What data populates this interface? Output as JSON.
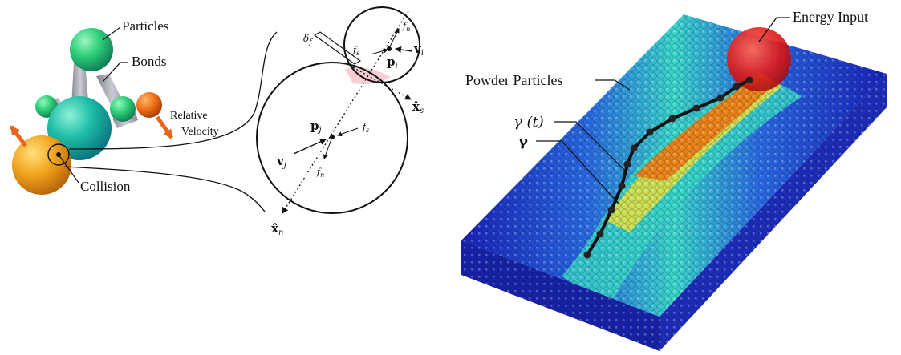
{
  "colors": {
    "particle_green": "#2fd27a",
    "particle_teal": "#1fbfa8",
    "particle_orange": "#f0a31c",
    "relative_velocity_ball": "#ee6a14",
    "arrow_orange": "#e8651a",
    "bond_gray": "#9a9aa6",
    "energy_input": "#e01818",
    "powder_low": "#1d2fd0",
    "powder_mid": "#3ad7c8",
    "powder_high": "#f07a10",
    "contact_overlap": "#f6c9cf",
    "path_black": "#111111"
  },
  "left_panel": {
    "label_particles": "Particles",
    "label_bonds": "Bonds",
    "label_relative_velocity_1": "Relative",
    "label_relative_velocity_2": "Velocity",
    "label_collision": "Collision"
  },
  "middle_panel": {
    "label_delta": "δ",
    "label_delta_sub": "f",
    "label_fn_top": "f",
    "label_fn_top_sub": "n",
    "label_fs_top": "f",
    "label_fs_top_sub": "s",
    "label_vi": "v",
    "label_vi_sub": "i",
    "label_pi": "p",
    "label_pi_sub": "i",
    "label_xs": "x̂",
    "label_xs_sub": "s",
    "label_pj": "p",
    "label_pj_sub": "j",
    "label_fs_bottom": "f",
    "label_fs_bottom_sub": "s",
    "label_vj": "v",
    "label_vj_sub": "j",
    "label_fn_bottom": "f",
    "label_fn_bottom_sub": "n",
    "label_xn": "x̂",
    "label_xn_sub": "n"
  },
  "right_panel": {
    "label_energy_input": "Energy Input",
    "label_powder_particles": "Powder Particles",
    "label_gamma_t": "γ (t)",
    "label_gamma": "γ"
  }
}
